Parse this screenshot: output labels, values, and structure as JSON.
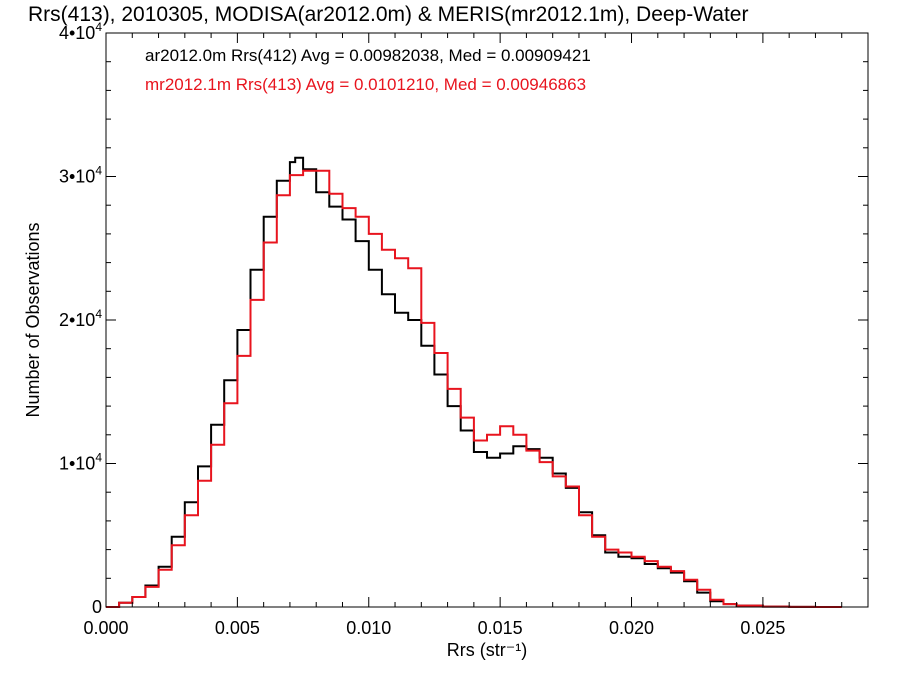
{
  "chart_data": {
    "type": "line",
    "title": "Rrs(413), 2010305, MODISA(ar2012.0m) & MERIS(mr2012.1m), Deep-Water",
    "xlabel": "Rrs (str⁻¹)",
    "ylabel": "Number of Observations",
    "xlim": [
      0,
      0.029
    ],
    "ylim": [
      0,
      40000
    ],
    "x_ticks": [
      0.0,
      0.005,
      0.01,
      0.015,
      0.02,
      0.025
    ],
    "x_tick_labels": [
      "0.000",
      "0.005",
      "0.010",
      "0.015",
      "0.020",
      "0.025"
    ],
    "y_ticks": [
      0,
      10000,
      20000,
      30000,
      40000
    ],
    "y_tick_labels": [
      {
        "base": "0",
        "exp": ""
      },
      {
        "base": "1•10",
        "exp": "4"
      },
      {
        "base": "2•10",
        "exp": "4"
      },
      {
        "base": "3•10",
        "exp": "4"
      },
      {
        "base": "4•10",
        "exp": "4"
      }
    ],
    "grid": false,
    "legend_placement": "top-left",
    "series": [
      {
        "name": "ar2012.0m Rrs(412) Avg = 0.00982038, Med = 0.00909421",
        "color": "#000000",
        "x": [
          0.0,
          0.0005,
          0.001,
          0.0015,
          0.002,
          0.0025,
          0.003,
          0.0035,
          0.004,
          0.0045,
          0.005,
          0.0055,
          0.006,
          0.0065,
          0.007,
          0.0072,
          0.0075,
          0.008,
          0.0085,
          0.009,
          0.0095,
          0.01,
          0.0105,
          0.011,
          0.0115,
          0.012,
          0.0125,
          0.013,
          0.0135,
          0.014,
          0.0145,
          0.015,
          0.0155,
          0.016,
          0.0165,
          0.017,
          0.0175,
          0.018,
          0.0185,
          0.019,
          0.0195,
          0.02,
          0.0205,
          0.021,
          0.0215,
          0.022,
          0.0225,
          0.023,
          0.0235,
          0.024,
          0.025,
          0.026,
          0.027,
          0.028
        ],
        "y": [
          0,
          300,
          700,
          1500,
          2800,
          4900,
          7300,
          9800,
          12700,
          15800,
          19300,
          23500,
          27200,
          29700,
          31000,
          31300,
          30500,
          28900,
          27900,
          27000,
          25500,
          23500,
          21800,
          20500,
          20000,
          18200,
          16200,
          14000,
          12300,
          10800,
          10400,
          10700,
          11200,
          11000,
          10400,
          9300,
          8300,
          6600,
          5000,
          3800,
          3500,
          3400,
          3000,
          2700,
          2400,
          1800,
          1000,
          400,
          200,
          100,
          30,
          10,
          0,
          0
        ]
      },
      {
        "name": "mr2012.1m Rrs(413) Avg = 0.0101210, Med = 0.00946863",
        "color": "#e8141e",
        "x": [
          0.0,
          0.0005,
          0.001,
          0.0015,
          0.002,
          0.0025,
          0.003,
          0.0035,
          0.004,
          0.0045,
          0.005,
          0.0055,
          0.006,
          0.0065,
          0.007,
          0.0075,
          0.008,
          0.0085,
          0.009,
          0.0095,
          0.01,
          0.0105,
          0.011,
          0.0115,
          0.012,
          0.0125,
          0.013,
          0.0135,
          0.014,
          0.0145,
          0.015,
          0.0155,
          0.016,
          0.0165,
          0.017,
          0.0175,
          0.018,
          0.0185,
          0.019,
          0.0195,
          0.02,
          0.0205,
          0.021,
          0.0215,
          0.022,
          0.0225,
          0.023,
          0.0235,
          0.024,
          0.025,
          0.026,
          0.027,
          0.028
        ],
        "y": [
          0,
          300,
          700,
          1400,
          2600,
          4300,
          6400,
          8800,
          11300,
          14200,
          17500,
          21400,
          25400,
          28700,
          30100,
          30400,
          30400,
          28800,
          27800,
          27200,
          26000,
          24900,
          24300,
          23600,
          19800,
          17700,
          15200,
          13200,
          11600,
          12000,
          12600,
          12000,
          10900,
          10100,
          9100,
          8400,
          6400,
          4900,
          4000,
          3800,
          3500,
          3200,
          2800,
          2500,
          1900,
          1200,
          500,
          200,
          100,
          30,
          10,
          0,
          0
        ]
      }
    ]
  }
}
